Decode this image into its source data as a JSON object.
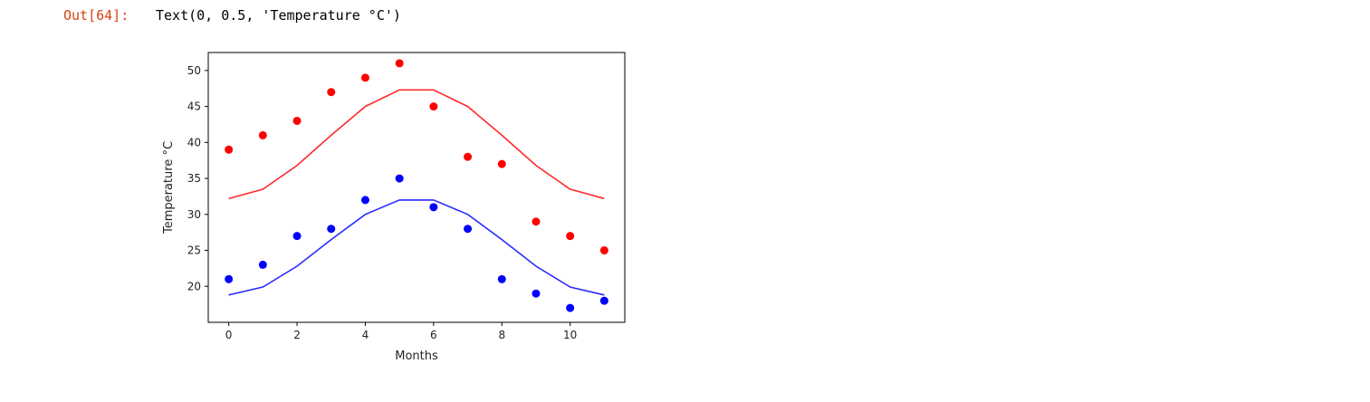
{
  "cell": {
    "prompt": "Out[64]:",
    "output_text": "Text(0, 0.5, 'Temperature °C')"
  },
  "chart_data": {
    "type": "scatter",
    "xlabel": "Months",
    "ylabel": "Temperature °C",
    "xlim": [
      -0.6,
      11.6
    ],
    "ylim": [
      15.0,
      52.5
    ],
    "x_ticks": [
      0,
      2,
      4,
      6,
      8,
      10
    ],
    "y_ticks": [
      20,
      25,
      30,
      35,
      40,
      45,
      50
    ],
    "grid": false,
    "x": [
      0,
      1,
      2,
      3,
      4,
      5,
      6,
      7,
      8,
      9,
      10,
      11
    ],
    "series": [
      {
        "kind": "scatter",
        "color": "#ff0000",
        "values": [
          39,
          41,
          43,
          47,
          49,
          51,
          45,
          38,
          37,
          29,
          27,
          25
        ]
      },
      {
        "kind": "scatter",
        "color": "#0000ff",
        "values": [
          21,
          23,
          27,
          28,
          32,
          35,
          31,
          28,
          21,
          19,
          17,
          18
        ]
      },
      {
        "kind": "line",
        "color": "#ff2a2a",
        "values": [
          32.2,
          33.5,
          36.8,
          41.0,
          45.0,
          47.3,
          47.3,
          45.0,
          41.0,
          36.8,
          33.5,
          32.2
        ]
      },
      {
        "kind": "line",
        "color": "#2a2aff",
        "values": [
          18.8,
          19.9,
          22.8,
          26.5,
          30.0,
          32.0,
          32.0,
          30.0,
          26.5,
          22.8,
          19.9,
          18.8
        ]
      }
    ]
  }
}
